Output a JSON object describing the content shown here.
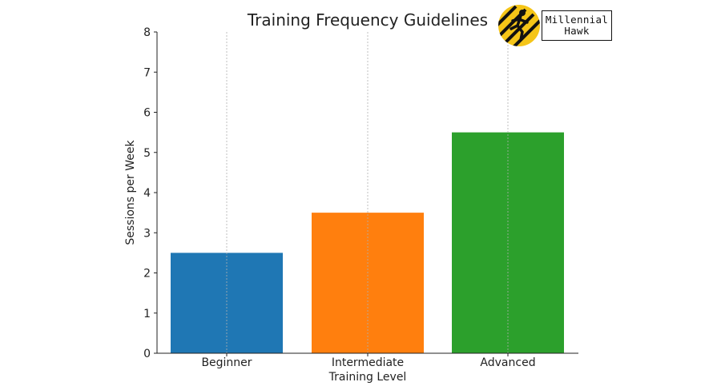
{
  "chart_data": {
    "type": "bar",
    "title": "Training Frequency Guidelines",
    "xlabel": "Training Level",
    "ylabel": "Sessions per Week",
    "categories": [
      "Beginner",
      "Intermediate",
      "Advanced"
    ],
    "values": [
      2.5,
      3.5,
      5.5
    ],
    "colors": [
      "#1f77b4",
      "#ff7f0e",
      "#2ca02c"
    ],
    "ylim": [
      0,
      8
    ],
    "yticks": [
      "0",
      "1",
      "2",
      "3",
      "4",
      "5",
      "6",
      "7",
      "8"
    ],
    "grid": "vertical dashed at category centers"
  },
  "logo": {
    "line1": "Millennial",
    "line2": "Hawk",
    "circle_color": "#f5c518",
    "icon": "running-figure-icon"
  }
}
